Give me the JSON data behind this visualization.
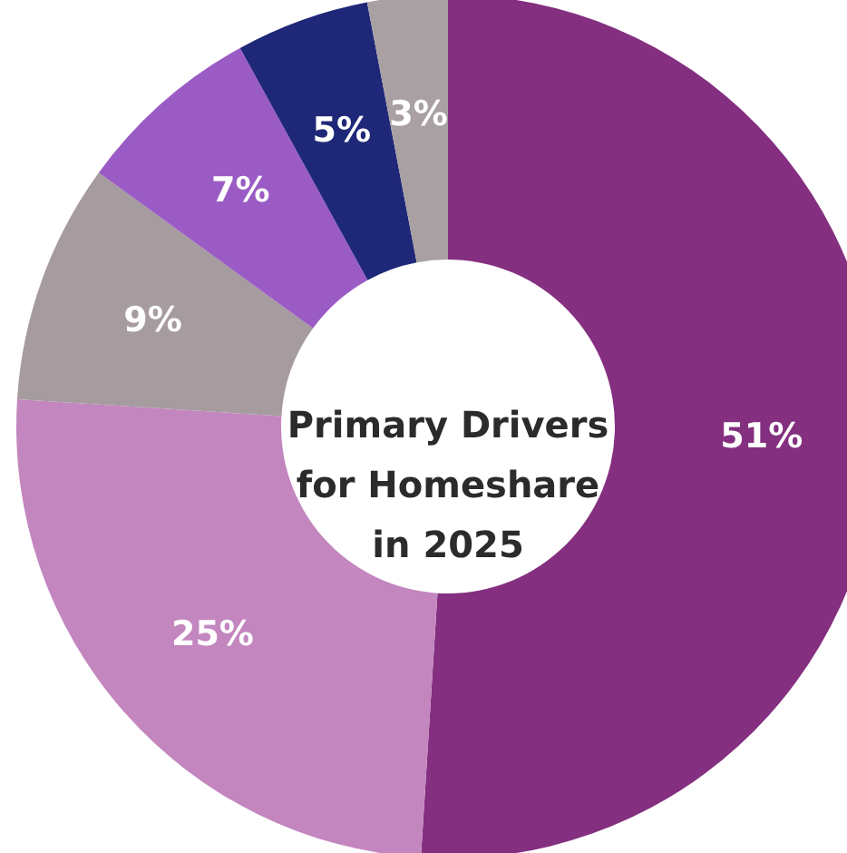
{
  "chart_data": {
    "type": "donut",
    "title": "Primary Drivers for Homeshare in 2025",
    "categories": [
      null,
      null,
      null,
      null,
      null,
      null
    ],
    "values": [
      51,
      25,
      9,
      7,
      5,
      3
    ],
    "colors": [
      "#842f7f",
      "#c386bf",
      "#a69b9f",
      "#9b5bc4",
      "#1f2878",
      "#a9a0a4"
    ],
    "value_labels": [
      "51%",
      "25%",
      "9%",
      "7%",
      "5%",
      "3%"
    ]
  }
}
